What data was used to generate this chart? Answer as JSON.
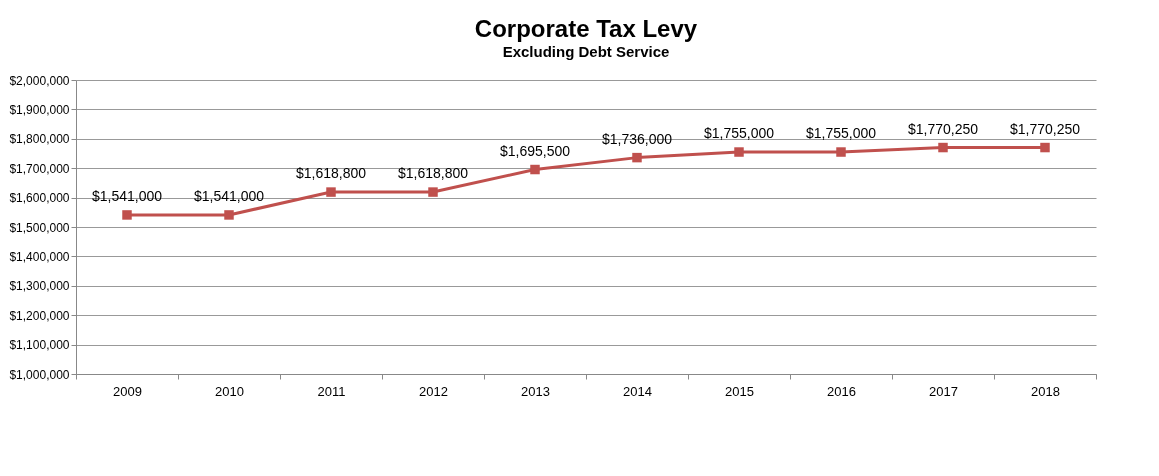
{
  "chart_data": {
    "type": "line",
    "title": "Corporate Tax Levy",
    "subtitle": "Excluding  Debt Service",
    "categories": [
      "2009",
      "2010",
      "2011",
      "2012",
      "2013",
      "2014",
      "2015",
      "2016",
      "2017",
      "2018"
    ],
    "series": [
      {
        "color": "#c0504d",
        "values": [
          1541000,
          1541000,
          1618800,
          1618800,
          1695500,
          1736000,
          1755000,
          1755000,
          1770250,
          1770250
        ],
        "value_labels": [
          "$1,541,000",
          "$1,541,000",
          "$1,618,800",
          "$1,618,800",
          "$1,695,500",
          "$1,736,000",
          "$1,755,000",
          "$1,755,000",
          "$1,770,250",
          "$1,770,250"
        ]
      }
    ],
    "ylim": [
      1000000,
      2000000
    ],
    "yticks": [
      {
        "value": 1000000,
        "label": "$1,000,000"
      },
      {
        "value": 1100000,
        "label": "$1,100,000"
      },
      {
        "value": 1200000,
        "label": "$1,200,000"
      },
      {
        "value": 1300000,
        "label": "$1,300,000"
      },
      {
        "value": 1400000,
        "label": "$1,400,000"
      },
      {
        "value": 1500000,
        "label": "$1,500,000"
      },
      {
        "value": 1600000,
        "label": "$1,600,000"
      },
      {
        "value": 1700000,
        "label": "$1,700,000"
      },
      {
        "value": 1800000,
        "label": "$1,800,000"
      },
      {
        "value": 1900000,
        "label": "$1,900,000"
      },
      {
        "value": 2000000,
        "label": "$2,000,000"
      }
    ],
    "grid": "y",
    "marker": "square",
    "line_style": "solid"
  }
}
